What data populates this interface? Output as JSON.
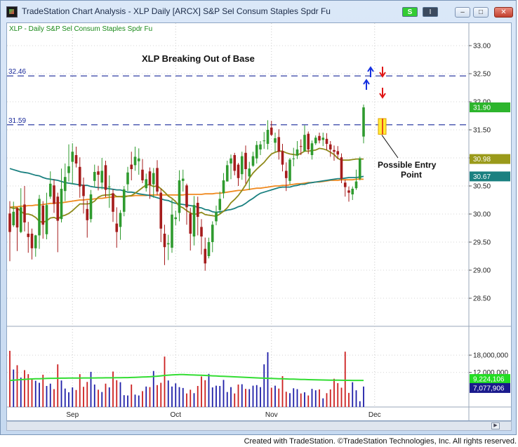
{
  "window": {
    "title": "TradeStation Chart Analysis - XLP Daily [ARCX] S&P Sel Consum Staples Spdr Fu",
    "buttons": {
      "symbol_badge": "S",
      "menu_badge": "I"
    }
  },
  "chart_data": {
    "type": "candlestick",
    "symbol_label": "XLP - Daily  S&P Sel Consum Staples Spdr Fu",
    "annotation_title": "XLP Breaking Out of Base",
    "entry_label_line1": "Possible Entry",
    "entry_label_line2": "Point",
    "price_axis": {
      "range": [
        28.0,
        33.4
      ],
      "ticks": [
        "33.00",
        "32.50",
        "32.00",
        "31.50",
        "31.00",
        "30.50",
        "30.00",
        "29.50",
        "29.00",
        "28.50"
      ]
    },
    "volume_axis": {
      "range": [
        0,
        28000000
      ],
      "ticks": [
        "18,000,000",
        "12,000,000"
      ]
    },
    "x_axis_labels": [
      {
        "label": "Sep",
        "index": 17
      },
      {
        "label": "Oct",
        "index": 45
      },
      {
        "label": "Nov",
        "index": 71
      },
      {
        "label": "Dec",
        "index": 99
      }
    ],
    "resistance_lines": [
      {
        "label": "32.46",
        "value": 32.46
      },
      {
        "label": "31.59",
        "value": 31.59
      }
    ],
    "last_values": [
      {
        "label": "31.90",
        "value": 31.9,
        "color": "#2db52d",
        "text_color": "#ffffff"
      },
      {
        "label": "30.98",
        "value": 30.98,
        "color": "#9a9a1a",
        "text_color": "#ffffff"
      },
      {
        "label": "30.67",
        "value": 30.67,
        "color": "#1a8080",
        "text_color": "#ffffff"
      }
    ],
    "volume_last_values": [
      {
        "label": "9,224,106",
        "value": 9224106,
        "color": "#22dd22",
        "text_color": "#ffffff"
      },
      {
        "label": "7,077,906",
        "value": 7077906,
        "color": "#1a1a8c",
        "text_color": "#ffffff"
      }
    ],
    "up_color": "#2f9b2f",
    "down_color": "#a51c1c",
    "vol_up_color": "#1f1fa8",
    "vol_down_color": "#cc2020",
    "volume_ma_color": "#33dd33",
    "ma_fast_color": "#8f8a1a",
    "ma_mid_color": "#1a8080",
    "ma_slow_color": "#f08a20",
    "candles": [
      [
        30.01,
        29.68,
        30.23,
        29.16
      ],
      [
        29.8,
        30.04,
        30.22,
        29.77
      ],
      [
        30.1,
        29.76,
        30.12,
        29.34
      ],
      [
        29.68,
        30.12,
        30.46,
        29.66
      ],
      [
        30.17,
        29.85,
        30.5,
        29.69
      ],
      [
        29.65,
        29.59,
        29.86,
        29.31
      ],
      [
        29.65,
        29.39,
        29.74,
        29.19
      ],
      [
        29.39,
        29.62,
        29.63,
        29.24
      ],
      [
        29.62,
        30.27,
        30.34,
        29.38
      ],
      [
        30.15,
        29.81,
        30.23,
        29.56
      ],
      [
        29.64,
        30.16,
        30.38,
        29.55
      ],
      [
        30.31,
        30.54,
        30.76,
        30.27
      ],
      [
        30.51,
        30.18,
        30.62,
        30.02
      ],
      [
        30.31,
        29.88,
        30.38,
        29.32
      ],
      [
        29.91,
        30.45,
        30.81,
        29.85
      ],
      [
        30.41,
        30.66,
        30.9,
        30.23
      ],
      [
        30.73,
        30.85,
        31.24,
        30.58
      ],
      [
        30.93,
        31.11,
        31.26,
        30.53
      ],
      [
        31.05,
        30.9,
        31.2,
        30.83
      ],
      [
        30.84,
        30.49,
        31.01,
        30.29
      ],
      [
        30.52,
        30.32,
        30.65,
        30.01
      ],
      [
        30.09,
        29.89,
        30.24,
        29.58
      ],
      [
        29.91,
        30.35,
        30.43,
        29.85
      ],
      [
        30.59,
        30.75,
        30.88,
        30.48
      ],
      [
        30.76,
        30.7,
        30.86,
        30.42
      ],
      [
        30.56,
        30.77,
        31.0,
        30.44
      ],
      [
        30.87,
        30.43,
        30.95,
        30.3
      ],
      [
        30.49,
        30.49,
        30.69,
        30.11
      ],
      [
        30.37,
        30.04,
        30.44,
        29.86
      ],
      [
        29.83,
        29.68,
        30.12,
        29.4
      ],
      [
        29.77,
        30.02,
        30.07,
        29.54
      ],
      [
        30.04,
        30.44,
        30.5,
        29.96
      ],
      [
        30.53,
        30.74,
        30.84,
        30.41
      ],
      [
        30.88,
        30.8,
        31.11,
        30.6
      ],
      [
        30.87,
        31.02,
        31.2,
        30.77
      ],
      [
        30.94,
        30.99,
        31.17,
        30.7
      ],
      [
        30.79,
        30.6,
        30.98,
        30.55
      ],
      [
        30.46,
        30.62,
        30.72,
        30.4
      ],
      [
        30.76,
        30.52,
        30.83,
        30.27
      ],
      [
        30.53,
        30.73,
        30.82,
        30.29
      ],
      [
        30.82,
        30.4,
        30.96,
        30.34
      ],
      [
        30.38,
        29.74,
        30.45,
        29.5
      ],
      [
        29.65,
        29.41,
        29.81,
        29.09
      ],
      [
        29.46,
        29.48,
        29.63,
        29.18
      ],
      [
        29.4,
        29.99,
        30.26,
        29.31
      ],
      [
        29.91,
        29.94,
        30.06,
        29.8
      ],
      [
        30.02,
        30.6,
        30.78,
        29.87
      ],
      [
        30.59,
        30.63,
        30.79,
        30.4
      ],
      [
        30.51,
        30.12,
        30.54,
        29.81
      ],
      [
        30.01,
        29.65,
        30.11,
        29.35
      ],
      [
        29.6,
        30.16,
        30.32,
        29.44
      ],
      [
        30.2,
        29.95,
        30.31,
        29.62
      ],
      [
        29.77,
        29.6,
        29.91,
        29.28
      ],
      [
        29.38,
        29.12,
        29.58,
        28.99
      ],
      [
        29.25,
        29.5,
        29.58,
        29.21
      ],
      [
        29.5,
        29.81,
        29.87,
        29.32
      ],
      [
        29.87,
        30.03,
        30.15,
        29.8
      ],
      [
        30.07,
        30.27,
        30.4,
        30.0
      ],
      [
        30.37,
        30.6,
        30.73,
        30.28
      ],
      [
        30.58,
        30.87,
        30.95,
        30.58
      ],
      [
        30.9,
        30.99,
        31.06,
        30.62
      ],
      [
        31.05,
        30.77,
        31.09,
        30.69
      ],
      [
        30.88,
        30.64,
        30.91,
        30.5
      ],
      [
        30.71,
        31.03,
        31.11,
        30.61
      ],
      [
        31.09,
        30.8,
        31.22,
        30.54
      ],
      [
        30.67,
        30.81,
        30.93,
        30.43
      ],
      [
        30.86,
        31.03,
        31.11,
        30.84
      ],
      [
        30.99,
        31.23,
        31.3,
        30.9
      ],
      [
        31.15,
        31.24,
        31.3,
        31.05
      ],
      [
        31.31,
        31.31,
        31.46,
        31.16
      ],
      [
        31.25,
        31.5,
        31.67,
        31.15
      ],
      [
        31.54,
        31.41,
        31.66,
        31.39
      ],
      [
        31.27,
        31.35,
        31.45,
        31.11
      ],
      [
        31.37,
        31.11,
        31.51,
        30.97
      ],
      [
        31.12,
        30.88,
        31.25,
        30.76
      ],
      [
        30.77,
        30.64,
        30.92,
        30.41
      ],
      [
        30.59,
        30.97,
        31.0,
        30.53
      ],
      [
        30.99,
        30.99,
        31.18,
        30.85
      ],
      [
        31.04,
        31.15,
        31.3,
        30.98
      ],
      [
        31.21,
        31.2,
        31.33,
        31.05
      ],
      [
        31.12,
        31.41,
        31.58,
        31.11
      ],
      [
        31.43,
        31.15,
        31.47,
        31.07
      ],
      [
        31.05,
        31.26,
        31.31,
        30.97
      ],
      [
        31.26,
        31.36,
        31.4,
        31.23
      ],
      [
        31.39,
        31.31,
        31.45,
        31.26
      ],
      [
        31.32,
        31.36,
        31.45,
        31.21
      ],
      [
        31.34,
        31.25,
        31.44,
        31.14
      ],
      [
        31.24,
        31.15,
        31.3,
        31.02
      ],
      [
        31.14,
        31.11,
        31.22,
        30.95
      ],
      [
        31.12,
        31.06,
        31.21,
        30.98
      ],
      [
        31.01,
        30.63,
        31.08,
        30.55
      ],
      [
        30.56,
        30.48,
        30.61,
        30.31
      ],
      [
        30.42,
        30.38,
        30.49,
        30.22
      ],
      [
        30.35,
        30.45,
        30.49,
        30.25
      ],
      [
        30.46,
        30.58,
        30.79,
        30.43
      ],
      [
        30.63,
        30.99,
        31.02,
        30.6
      ],
      [
        31.38,
        31.9,
        31.95,
        31.26
      ]
    ],
    "volume": [
      19500000,
      13000000,
      14500000,
      10200000,
      12800000,
      11400000,
      9800000,
      9100000,
      8400000,
      11200000,
      7300000,
      8100000,
      6200000,
      14800000,
      9200000,
      6400000,
      5100000,
      6800000,
      5900000,
      11400000,
      7000000,
      8700000,
      12200000,
      7800000,
      6000000,
      5200000,
      8100000,
      6800000,
      12300000,
      9300000,
      8600000,
      4100000,
      4000000,
      7800000,
      4300000,
      4000000,
      5500000,
      7100000,
      6900000,
      12500000,
      7600000,
      8400000,
      17500000,
      9200000,
      7100000,
      8200000,
      6900000,
      6600000,
      4700000,
      6000000,
      4800000,
      7300000,
      10600000,
      9300000,
      11500000,
      6800000,
      7400000,
      7300000,
      9400000,
      5200000,
      6900000,
      4700000,
      7800000,
      7900000,
      6300000,
      6200000,
      7400000,
      7600000,
      6900000,
      14800000,
      19000000,
      6700000,
      7400000,
      6400000,
      10700000,
      5300000,
      4800000,
      6500000,
      6200000,
      4700000,
      5100000,
      4000000,
      6300000,
      5800000,
      6100000,
      3000000,
      4800000,
      6100000,
      9800000,
      8300000,
      6700000,
      19200000,
      4900000,
      8600000,
      5800000,
      2000000,
      7100000
    ],
    "ma_fast": [
      30.12,
      30.1,
      30.11,
      30.05,
      30.0,
      30.0,
      29.98,
      29.94,
      29.87,
      29.85,
      29.88,
      29.93,
      29.94,
      29.91,
      29.96,
      29.98,
      30.01,
      30.06,
      30.12,
      30.18,
      30.18,
      30.18,
      30.19,
      30.23,
      30.3,
      30.33,
      30.34,
      30.34,
      30.36,
      30.31,
      30.31,
      30.3,
      30.32,
      30.33,
      30.37,
      30.42,
      30.47,
      30.52,
      30.52,
      30.49,
      30.5,
      30.45,
      30.39,
      30.32,
      30.28,
      30.22,
      30.14,
      30.11,
      30.06,
      30.02,
      29.99,
      30.01,
      30.03,
      29.99,
      29.98,
      29.97,
      29.96,
      30.0,
      30.05,
      30.11,
      30.2,
      30.26,
      30.33,
      30.42,
      30.52,
      30.64,
      30.73,
      30.8,
      30.86,
      30.92,
      31.0,
      31.07,
      31.1,
      31.12,
      31.12,
      31.09,
      31.07,
      31.06,
      31.05,
      31.08,
      31.12,
      31.12,
      31.13,
      31.14,
      31.17,
      31.16,
      31.14,
      31.1,
      31.06,
      30.99,
      30.96,
      30.96,
      30.96,
      30.97,
      30.98,
      30.98,
      30.98
    ],
    "ma_mid": [
      30.81,
      30.79,
      30.77,
      30.75,
      30.74,
      30.73,
      30.71,
      30.69,
      30.68,
      30.65,
      30.63,
      30.62,
      30.61,
      30.6,
      30.58,
      30.56,
      30.55,
      30.54,
      30.53,
      30.52,
      30.51,
      30.51,
      30.49,
      30.48,
      30.47,
      30.47,
      30.46,
      30.45,
      30.44,
      30.43,
      30.43,
      30.41,
      30.39,
      30.39,
      30.38,
      30.36,
      30.35,
      30.34,
      30.33,
      30.31,
      30.29,
      30.27,
      30.25,
      30.24,
      30.21,
      30.19,
      30.18,
      30.17,
      30.16,
      30.15,
      30.14,
      30.12,
      30.11,
      30.08,
      30.07,
      30.04,
      30.03,
      30.04,
      30.05,
      30.07,
      30.08,
      30.1,
      30.13,
      30.15,
      30.19,
      30.24,
      30.28,
      30.33,
      30.37,
      30.39,
      30.41,
      30.43,
      30.45,
      30.47,
      30.48,
      30.48,
      30.48,
      30.5,
      30.51,
      30.53,
      30.53,
      30.55,
      30.56,
      30.57,
      30.58,
      30.59,
      30.6,
      30.61,
      30.62,
      30.63,
      30.63,
      30.64,
      30.65,
      30.65,
      30.65,
      30.66,
      30.67
    ],
    "ma_slow": [
      30.12,
      30.13,
      30.13,
      30.14,
      30.14,
      30.15,
      30.15,
      30.16,
      30.16,
      30.17,
      30.18,
      30.19,
      30.19,
      30.2,
      30.2,
      30.21,
      30.22,
      30.23,
      30.24,
      30.25,
      30.25,
      30.26,
      30.26,
      30.27,
      30.28,
      30.28,
      30.29,
      30.3,
      30.3,
      30.31,
      30.31,
      30.32,
      30.32,
      30.32,
      30.33,
      30.33,
      30.33,
      30.33,
      30.34,
      30.34,
      30.34,
      30.34,
      30.34,
      30.34,
      30.34,
      30.34,
      30.34,
      30.34,
      30.35,
      30.35,
      30.35,
      30.35,
      30.35,
      30.36,
      30.36,
      30.36,
      30.37,
      30.37,
      30.38,
      30.39,
      30.4,
      30.41,
      30.42,
      30.42,
      30.43,
      30.44,
      30.45,
      30.46,
      30.46,
      30.47,
      30.48,
      30.49,
      30.5,
      30.5,
      30.51,
      30.51,
      30.52,
      30.53,
      30.54,
      30.54,
      30.55,
      30.56,
      30.56,
      30.57,
      30.57,
      30.58,
      30.59,
      30.6,
      30.6,
      30.6,
      30.61,
      30.61,
      30.61,
      30.61,
      30.62,
      30.62,
      30.62
    ],
    "vol_ma": [
      9200000,
      9300000,
      9400000,
      9500000,
      9600000,
      9700000,
      9750000,
      9800000,
      9800000,
      9850000,
      9900000,
      9950000,
      9950000,
      9980000,
      10000000,
      10000000,
      10020000,
      10030000,
      10050000,
      10060000,
      10070000,
      10070000,
      10080000,
      10090000,
      10100000,
      10110000,
      10120000,
      10130000,
      10140000,
      10150000,
      10170000,
      10190000,
      10210000,
      10250000,
      10300000,
      10350000,
      10400000,
      10450000,
      10500000,
      10600000,
      10700000,
      10800000,
      10950000,
      11050000,
      11150000,
      11200000,
      11250000,
      11250000,
      11200000,
      11150000,
      11100000,
      11050000,
      11000000,
      10950000,
      10880000,
      10820000,
      10760000,
      10700000,
      10640000,
      10580000,
      10520000,
      10460000,
      10400000,
      10340000,
      10280000,
      10220000,
      10160000,
      10100000,
      10050000,
      10000000,
      9950000,
      9900000,
      9860000,
      9820000,
      9780000,
      9740000,
      9700000,
      9660000,
      9620000,
      9580000,
      9540000,
      9500000,
      9470000,
      9440000,
      9410000,
      9380000,
      9350000,
      9330000,
      9310000,
      9290000,
      9270000,
      9255000,
      9245000,
      9235000,
      9230000,
      9226000,
      9224106
    ]
  }
}
